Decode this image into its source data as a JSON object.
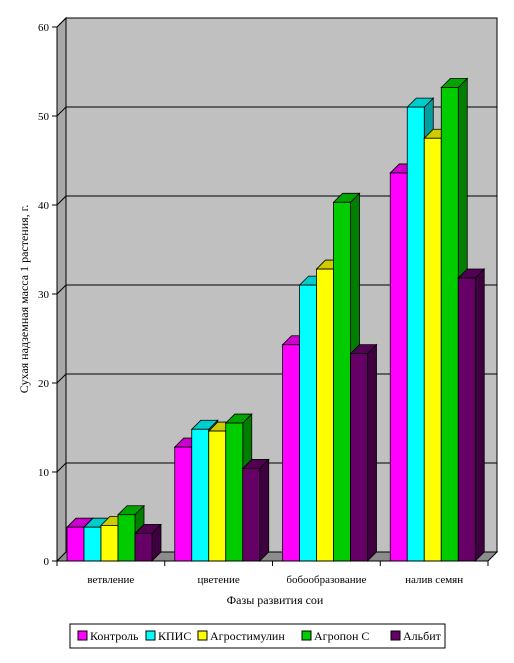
{
  "chart_data": {
    "type": "bar",
    "categories": [
      "ветвление",
      "цветение",
      "бобообразование",
      "налив семян"
    ],
    "series": [
      {
        "name": "Контроль",
        "color": "#ff00ff",
        "values": [
          3.8,
          12.8,
          24.3,
          43.6
        ]
      },
      {
        "name": "КПИС",
        "color": "#00ffff",
        "values": [
          3.8,
          14.8,
          31.0,
          51.0
        ]
      },
      {
        "name": "Агростимулин",
        "color": "#ffff00",
        "values": [
          4.0,
          14.6,
          32.8,
          47.5
        ]
      },
      {
        "name": "Агропон С",
        "color": "#00cc00",
        "values": [
          5.2,
          15.5,
          40.3,
          53.2
        ]
      },
      {
        "name": "Альбит",
        "color": "#660066",
        "values": [
          3.1,
          10.4,
          23.3,
          31.8
        ]
      }
    ],
    "xlabel": "Фазы развития сои",
    "ylabel": "Сухая надземная масса 1 растения, г.",
    "ylim": [
      0,
      60
    ],
    "yticks": [
      "0",
      "10",
      "20",
      "30",
      "40",
      "50",
      "60"
    ],
    "grid": true,
    "legend": "bottom",
    "plot_background": "#c0c0c0"
  }
}
